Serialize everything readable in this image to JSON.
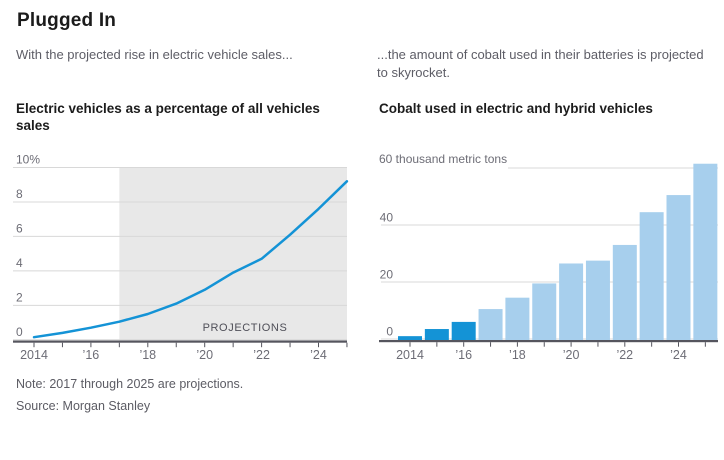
{
  "header": {
    "title": "Plugged In"
  },
  "intro": {
    "left": "With the projected rise in electric vehicle sales...",
    "right": "...the amount of cobalt used in their batteries is projected to skyrocket."
  },
  "colors": {
    "accent_blue": "#1493d6",
    "projection_light_blue": "#a7cfed",
    "projection_shade_gray": "#e8e8e8",
    "gridline": "#d8d8d8",
    "axis": "#55555e"
  },
  "chart_data": [
    {
      "type": "line",
      "title": "Electric vehicles as a percentage of all vehicles sales",
      "x": [
        2014,
        2015,
        2016,
        2017,
        2018,
        2019,
        2020,
        2021,
        2022,
        2023,
        2024,
        2025
      ],
      "values": [
        0.15,
        0.4,
        0.7,
        1.05,
        1.5,
        2.1,
        2.9,
        3.9,
        4.7,
        6.1,
        7.6,
        9.2
      ],
      "ylabel": "percent of all vehicle sales",
      "ylim": [
        0,
        10
      ],
      "yticks": [
        0,
        2,
        4,
        6,
        8,
        10
      ],
      "ytick_labels": [
        "0",
        "2",
        "4",
        "6",
        "8",
        "10%"
      ],
      "xtick_labels": [
        "2014",
        "’16",
        "’18",
        "’20",
        "’22",
        "’24"
      ],
      "grid": true,
      "projection_start_x": 2017,
      "projection_label": "PROJECTIONS",
      "line_color": "#1493d6",
      "shade_color": "#e8e8e8"
    },
    {
      "type": "bar",
      "title": "Cobalt used in electric and hybrid vehicles",
      "categories": [
        2014,
        2015,
        2016,
        2017,
        2018,
        2019,
        2020,
        2021,
        2022,
        2023,
        2024,
        2025
      ],
      "values": [
        1,
        3.5,
        6,
        10.5,
        14.5,
        19.5,
        26.5,
        27.5,
        33,
        44.5,
        50.5,
        61.5
      ],
      "ylabel": "thousand metric tons",
      "ylim": [
        0,
        60
      ],
      "yticks": [
        0,
        20,
        40,
        60
      ],
      "ytick_labels": [
        "0",
        "20",
        "40"
      ],
      "top_axis_label": "60 thousand metric tons",
      "xtick_labels": [
        "2014",
        "’16",
        "’18",
        "’20",
        "’22",
        "’24"
      ],
      "grid": true,
      "actual_years_count": 3,
      "actual_color": "#1493d6",
      "projection_color": "#a7cfed"
    }
  ],
  "footer": {
    "note": "Note: 2017 through 2025 are projections.",
    "source": "Source: Morgan Stanley"
  }
}
